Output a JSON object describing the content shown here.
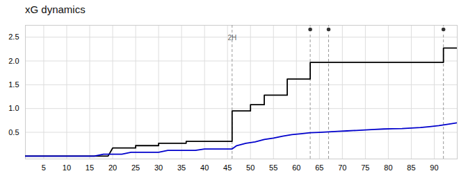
{
  "chart_data": {
    "type": "line",
    "title": "xG dynamics",
    "series": [
      {
        "color": "#000000",
        "x": [
          1,
          19,
          20,
          25,
          25,
          30,
          30,
          36,
          36,
          46,
          46,
          50,
          50,
          53,
          53,
          58,
          58,
          63,
          63,
          67,
          92,
          92,
          95
        ],
        "values": [
          0.0,
          0.0,
          0.17,
          0.17,
          0.22,
          0.22,
          0.27,
          0.27,
          0.31,
          0.31,
          0.95,
          0.95,
          1.08,
          1.08,
          1.28,
          1.28,
          1.62,
          1.62,
          1.97,
          1.97,
          1.97,
          2.27,
          2.27
        ]
      },
      {
        "color": "#0000cc",
        "x": [
          1,
          16,
          18,
          22,
          24,
          30,
          32,
          38,
          40,
          46,
          47,
          49,
          51,
          53,
          55,
          57,
          59,
          61,
          63,
          65,
          67,
          69,
          71,
          73,
          75,
          77,
          79,
          81,
          83,
          85,
          87,
          89,
          91,
          93,
          95
        ],
        "values": [
          0.0,
          0.0,
          0.04,
          0.04,
          0.08,
          0.08,
          0.12,
          0.12,
          0.15,
          0.15,
          0.22,
          0.27,
          0.3,
          0.35,
          0.38,
          0.42,
          0.45,
          0.47,
          0.49,
          0.5,
          0.51,
          0.52,
          0.53,
          0.54,
          0.55,
          0.56,
          0.57,
          0.575,
          0.58,
          0.59,
          0.6,
          0.62,
          0.64,
          0.67,
          0.7
        ]
      }
    ],
    "halftime": 46,
    "goals": [
      63,
      67,
      92
    ],
    "annotations": [
      {
        "text": "2H",
        "x": 46,
        "y": 2.43
      }
    ],
    "xlim": [
      1,
      95
    ],
    "xticks": [
      5,
      10,
      15,
      20,
      25,
      30,
      35,
      40,
      45,
      50,
      55,
      60,
      65,
      70,
      75,
      80,
      85,
      90
    ],
    "ylim": [
      -0.06,
      2.75
    ],
    "yticks": [
      0.5,
      {
        "value": 1.0,
        "label": "1.0"
      },
      1.5,
      {
        "value": 2.0,
        "label": "2.0"
      },
      2.5
    ],
    "grid": true
  }
}
